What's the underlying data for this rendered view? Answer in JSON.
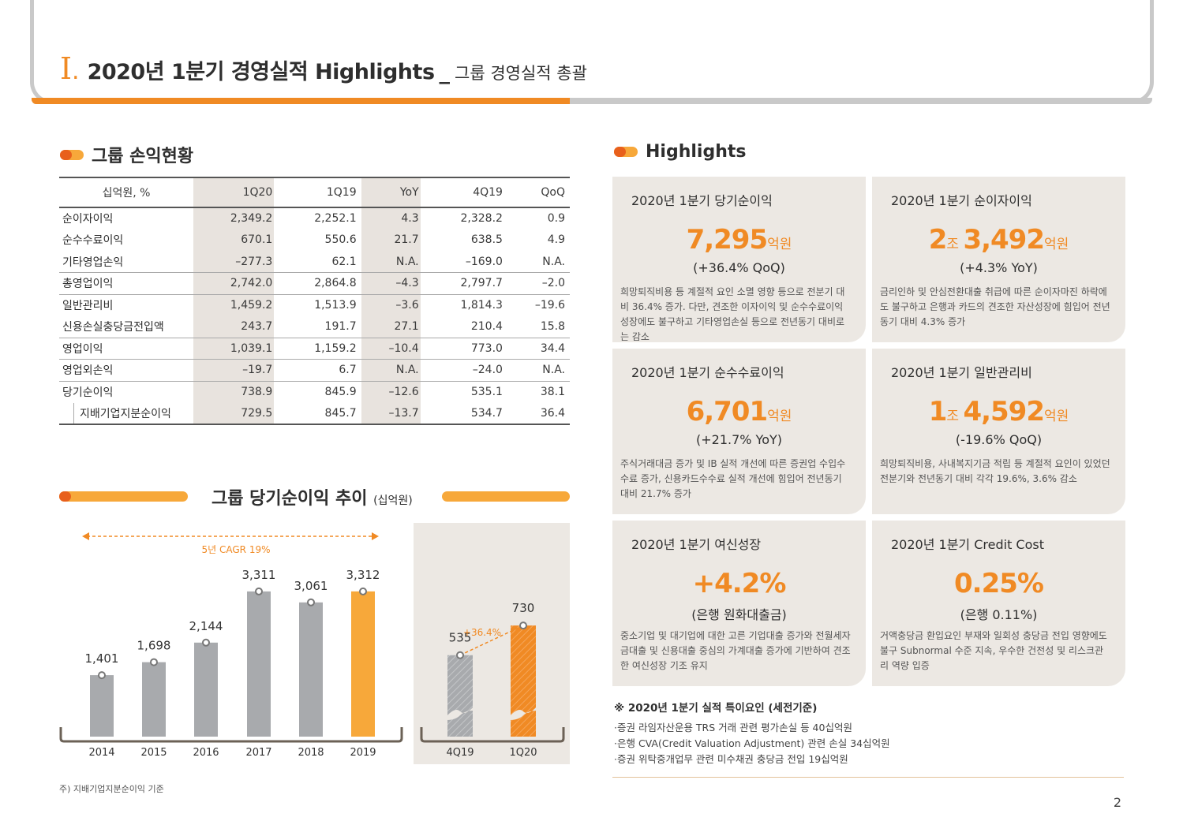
{
  "header": {
    "roman": "I",
    "roman_dot": ".",
    "title": "2020년 1분기 경영실적 Highlights",
    "separator": "_",
    "subtitle": "그룹 경영실적 총괄",
    "progress_fraction": 0.48
  },
  "pl_section": {
    "title": "그룹 손익현황",
    "columns": [
      "십억원, %",
      "1Q20",
      "1Q19",
      "YoY",
      "4Q19",
      "QoQ"
    ],
    "rows": [
      {
        "label": "순이자이익",
        "values": [
          "2,349.2",
          "2,252.1",
          "4.3",
          "2,328.2",
          "0.9"
        ]
      },
      {
        "label": "순수수료이익",
        "values": [
          "670.1",
          "550.6",
          "21.7",
          "638.5",
          "4.9"
        ]
      },
      {
        "label": "기타영업손익",
        "values": [
          "-277.3",
          "62.1",
          "N.A.",
          "-169.0",
          "N.A."
        ]
      },
      {
        "label": "총영업이익",
        "values": [
          "2,742.0",
          "2,864.8",
          "-4.3",
          "2,797.7",
          "-2.0"
        ]
      },
      {
        "label": "일반관리비",
        "values": [
          "1,459.2",
          "1,513.9",
          "-3.6",
          "1,814.3",
          "-19.6"
        ]
      },
      {
        "label": "신용손실충당금전입액",
        "values": [
          "243.7",
          "191.7",
          "27.1",
          "210.4",
          "15.8"
        ]
      },
      {
        "label": "영업이익",
        "values": [
          "1,039.1",
          "1,159.2",
          "-10.4",
          "773.0",
          "34.4"
        ]
      },
      {
        "label": "영업외손익",
        "values": [
          "-19.7",
          "6.7",
          "N.A.",
          "-24.0",
          "N.A."
        ]
      },
      {
        "label": "당기순이익",
        "values": [
          "738.9",
          "845.9",
          "-12.6",
          "535.1",
          "38.1"
        ]
      },
      {
        "label": "지배기업지분순이익",
        "values": [
          "729.5",
          "845.7",
          "-13.7",
          "534.7",
          "36.4"
        ]
      }
    ]
  },
  "chart_section": {
    "title": "그룹 당기순이익 추이",
    "unit": "(십억원)"
  },
  "chart_data": [
    {
      "type": "bar",
      "categories": [
        "2014",
        "2015",
        "2016",
        "2017",
        "2018",
        "2019"
      ],
      "values": [
        1401,
        1698,
        2144,
        3311,
        3061,
        3312
      ],
      "value_labels": [
        "1,401",
        "1,698",
        "2,144",
        "3,311",
        "3,061",
        "3,312"
      ],
      "annotation": "5년 CAGR 19%",
      "highlight_color": "#f7a83a",
      "bar_color": "#a8aaad"
    },
    {
      "type": "bar",
      "categories": [
        "4Q19",
        "1Q20"
      ],
      "values": [
        535,
        730
      ],
      "value_labels": [
        "535",
        "730"
      ],
      "annotation": "+36.4%",
      "bar_colors": [
        "#a8aaad",
        "#f08a24"
      ]
    }
  ],
  "highlights": {
    "title": "Highlights",
    "cards": [
      {
        "label": "2020년 1분기 당기순이익",
        "prefix": "",
        "prefix_unit": "",
        "value": "7,295",
        "unit": "억원",
        "change": "(+36.4% QoQ)",
        "desc": "희망퇴직비용 등 계절적 요인 소멸 영향 등으로 전분기 대비 36.4% 증가. 다만, 견조한 이자이익 및 순수수료이익 성장에도 불구하고 기타영업손실 등으로 전년동기 대비로는 감소"
      },
      {
        "label": "2020년 1분기 순이자이익",
        "prefix": "2",
        "prefix_unit": "조 ",
        "value": "3,492",
        "unit": "억원",
        "change": "(+4.3% YoY)",
        "desc": "금리인하 및 안심전환대출 취급에 따른 순이자마진 하락에도 불구하고 은행과 카드의 견조한 자산성장에 힘입어 전년동기 대비 4.3% 증가"
      },
      {
        "label": "2020년 1분기 순수수료이익",
        "prefix": "",
        "prefix_unit": "",
        "value": "6,701",
        "unit": "억원",
        "change": "(+21.7% YoY)",
        "desc": "주식거래대금 증가 및 IB 실적 개선에 따른 증권업 수입수수료 증가, 신용카드수수료 실적 개선에 힘입어 전년동기 대비 21.7% 증가"
      },
      {
        "label": "2020년 1분기 일반관리비",
        "prefix": "1",
        "prefix_unit": "조 ",
        "value": "4,592",
        "unit": "억원",
        "change": "(-19.6% QoQ)",
        "desc": "희망퇴직비용, 사내복지기금 적립 등 계절적 요인이 있었던 전분기와 전년동기 대비 각각 19.6%, 3.6% 감소"
      },
      {
        "label": "2020년 1분기 여신성장",
        "prefix": "",
        "prefix_unit": "",
        "value": "+4.2%",
        "unit": "",
        "change": "(은행 원화대출금)",
        "desc": "중소기업 및 대기업에 대한 고른 기업대출 증가와 전월세자금대출 및 신용대출 중심의 가계대출 증가에 기반하여 견조한 여신성장 기조 유지"
      },
      {
        "label": "2020년 1분기 Credit Cost",
        "prefix": "",
        "prefix_unit": "",
        "value": "0.25%",
        "unit": "",
        "change": "(은행 0.11%)",
        "desc": "거액충당금 환입요인 부재와 일회성 충당금 전입 영향에도 불구 Subnormal 수준 지속, 우수한 건전성 및 리스크관리 역량 입증"
      }
    ]
  },
  "notes": {
    "title": "※ 2020년 1분기 실적 특이요인 (세전기준)",
    "items": [
      "·증권 라임자산운용 TRS 거래 관련 평가손실 등 40십억원",
      "·은행 CVA(Credit Valuation Adjustment) 관련 손실 34십억원",
      "·증권 위탁중개업무 관련 미수채권 충당금 전입 19십억원"
    ]
  },
  "footnote": "주) 지배기업지분순이익 기준",
  "page_number": "2",
  "colors": {
    "accent": "#f08a24",
    "accent_light": "#f7a83a",
    "accent_dark": "#e8601c",
    "card_bg": "#ece8e3",
    "bar_gray": "#a8aaad"
  }
}
